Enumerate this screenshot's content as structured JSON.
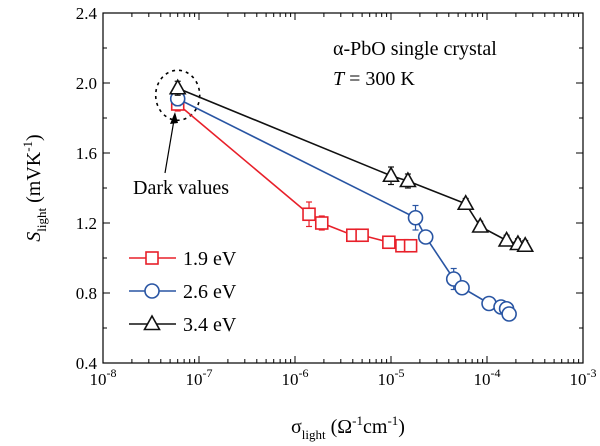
{
  "chart_data": {
    "type": "scatter",
    "xscale": "log",
    "xlim": [
      1e-08,
      0.001
    ],
    "ylim": [
      0.4,
      2.4
    ],
    "x_ticks": [
      {
        "value": 1e-08,
        "base": "10",
        "exp": "-8"
      },
      {
        "value": 1e-07,
        "base": "10",
        "exp": "-7"
      },
      {
        "value": 1e-06,
        "base": "10",
        "exp": "-6"
      },
      {
        "value": 1e-05,
        "base": "10",
        "exp": "-5"
      },
      {
        "value": 0.0001,
        "base": "10",
        "exp": "-4"
      },
      {
        "value": 0.001,
        "base": "10",
        "exp": "-3"
      }
    ],
    "y_ticks": [
      {
        "value": 0.4,
        "label": "0.4"
      },
      {
        "value": 0.8,
        "label": "0.8"
      },
      {
        "value": 1.2,
        "label": "1.2"
      },
      {
        "value": 1.6,
        "label": "1.6"
      },
      {
        "value": 2.0,
        "label": "2.0"
      },
      {
        "value": 2.4,
        "label": "2.4"
      }
    ],
    "xlabel": {
      "main": "σ",
      "sub": "light",
      "unit_open": " (Ω",
      "unit_exp1": "-1",
      "unit_mid": "cm",
      "unit_exp2": "-1",
      "unit_close": ")"
    },
    "ylabel": {
      "main": "S",
      "sub": "light",
      "unit_open": " (mVK",
      "unit_exp": "-1",
      "unit_close": ")"
    },
    "annotations": {
      "sample": "α-PbO single crystal",
      "temp_var": "T",
      "temp_val": " = 300 K",
      "dark": "Dark values"
    },
    "grid": false,
    "legend_position": "bottom-left",
    "series": [
      {
        "name": "1.9 eV",
        "marker": "square",
        "color": "#e8202a",
        "points": [
          {
            "x": 6e-08,
            "y": 1.88,
            "err": 0.04
          },
          {
            "x": 1.4e-06,
            "y": 1.25,
            "err": 0.07
          },
          {
            "x": 1.9e-06,
            "y": 1.2,
            "err": 0.04
          },
          {
            "x": 4e-06,
            "y": 1.13,
            "err": 0.02
          },
          {
            "x": 5e-06,
            "y": 1.13,
            "err": 0.02
          },
          {
            "x": 9.5e-06,
            "y": 1.09,
            "err": 0.02
          },
          {
            "x": 1.3e-05,
            "y": 1.07,
            "err": 0.02
          },
          {
            "x": 1.6e-05,
            "y": 1.07,
            "err": 0.02
          }
        ]
      },
      {
        "name": "2.6 eV",
        "marker": "circle",
        "color": "#2955a3",
        "points": [
          {
            "x": 6e-08,
            "y": 1.91,
            "err": 0.04
          },
          {
            "x": 1.8e-05,
            "y": 1.23,
            "err": 0.07
          },
          {
            "x": 2.3e-05,
            "y": 1.12,
            "err": 0.02
          },
          {
            "x": 4.5e-05,
            "y": 0.88,
            "err": 0.06
          },
          {
            "x": 5.5e-05,
            "y": 0.83,
            "err": 0.02
          },
          {
            "x": 0.000105,
            "y": 0.74,
            "err": 0.02
          },
          {
            "x": 0.00014,
            "y": 0.72,
            "err": 0.02
          },
          {
            "x": 0.00016,
            "y": 0.71,
            "err": 0.02
          },
          {
            "x": 0.00017,
            "y": 0.68,
            "err": 0.02
          }
        ]
      },
      {
        "name": "3.4 eV",
        "marker": "triangle",
        "color": "#111111",
        "points": [
          {
            "x": 6e-08,
            "y": 1.97,
            "err": 0.04
          },
          {
            "x": 1e-05,
            "y": 1.47,
            "err": 0.05
          },
          {
            "x": 1.5e-05,
            "y": 1.44,
            "err": 0.04
          },
          {
            "x": 6e-05,
            "y": 1.31,
            "err": 0.03
          },
          {
            "x": 8.5e-05,
            "y": 1.18,
            "err": 0.03
          },
          {
            "x": 0.00016,
            "y": 1.1,
            "err": 0.03
          },
          {
            "x": 0.00021,
            "y": 1.08,
            "err": 0.03
          },
          {
            "x": 0.00025,
            "y": 1.07,
            "err": 0.03
          }
        ]
      }
    ]
  }
}
